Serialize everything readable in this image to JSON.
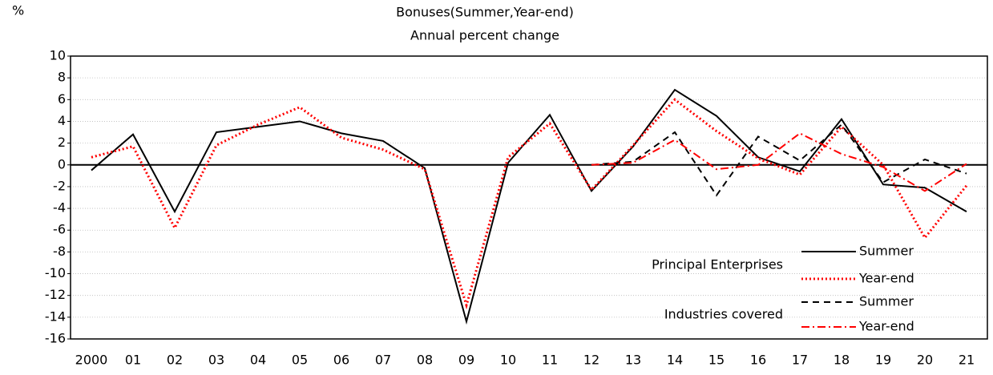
{
  "chart_data": {
    "type": "line",
    "title": "Bonuses(Summer,Year-end)",
    "subtitle": "Annual percent change",
    "y_label": "%",
    "categories": [
      "2000",
      "01",
      "02",
      "03",
      "04",
      "05",
      "06",
      "07",
      "08",
      "09",
      "10",
      "11",
      "12",
      "13",
      "14",
      "15",
      "16",
      "17",
      "18",
      "19",
      "20",
      "21"
    ],
    "legend_groups": [
      "Principal Enterprises",
      "Industries covered"
    ],
    "series": [
      {
        "name": "Summer",
        "group": 0,
        "color": "#000000",
        "dash": "none",
        "width": 2,
        "values": [
          -0.5,
          2.8,
          -4.3,
          3.0,
          3.5,
          4.0,
          2.9,
          2.2,
          -0.3,
          -14.4,
          0.2,
          4.6,
          -2.4,
          1.7,
          6.9,
          4.5,
          0.7,
          -0.6,
          4.2,
          -1.8,
          -2.1,
          -4.3
        ]
      },
      {
        "name": "Year-end",
        "group": 0,
        "color": "#ff0000",
        "dash": "2,3",
        "width": 3,
        "values": [
          0.7,
          1.7,
          -5.8,
          1.8,
          3.7,
          5.3,
          2.5,
          1.4,
          -0.4,
          -12.9,
          0.7,
          3.8,
          -2.3,
          1.8,
          6.0,
          3.1,
          0.6,
          -0.9,
          3.5,
          0.0,
          -6.7,
          -1.9
        ]
      },
      {
        "name": "Summer",
        "group": 1,
        "color": "#000000",
        "dash": "8,6",
        "width": 2,
        "values": [
          null,
          null,
          null,
          null,
          null,
          null,
          null,
          null,
          null,
          null,
          null,
          null,
          0.0,
          0.3,
          3.0,
          -2.8,
          2.6,
          0.4,
          3.7,
          -1.6,
          0.5,
          -0.8
        ]
      },
      {
        "name": "Year-end",
        "group": 1,
        "color": "#ff0000",
        "dash": "10,4,2,4",
        "width": 2,
        "values": [
          null,
          null,
          null,
          null,
          null,
          null,
          null,
          null,
          null,
          null,
          null,
          null,
          0.0,
          0.2,
          2.3,
          -0.4,
          0.0,
          2.9,
          1.0,
          -0.2,
          -2.4,
          0.1
        ]
      }
    ],
    "ylim": [
      -16,
      10
    ],
    "yticks": [
      -16,
      -14,
      -12,
      -10,
      -8,
      -6,
      -4,
      -2,
      0,
      2,
      4,
      6,
      8,
      10
    ],
    "grid": true
  }
}
